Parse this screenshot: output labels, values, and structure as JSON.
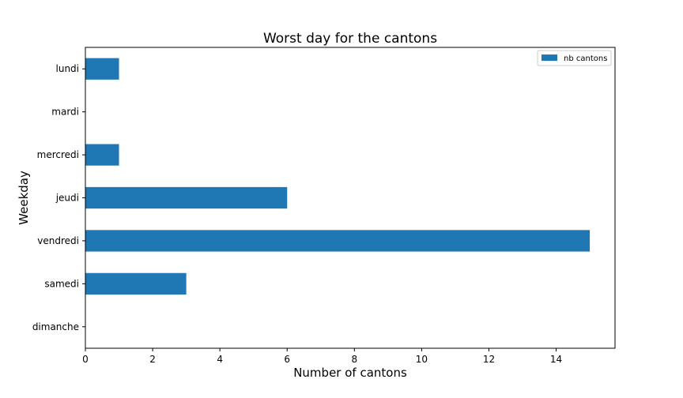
{
  "chart_data": {
    "type": "bar",
    "orientation": "horizontal",
    "title": "Worst day for the cantons",
    "xlabel": "Number of cantons",
    "ylabel": "Weekday",
    "categories": [
      "lundi",
      "mardi",
      "mercredi",
      "jeudi",
      "vendredi",
      "samedi",
      "dimanche"
    ],
    "series": [
      {
        "name": "nb cantons",
        "values": [
          1,
          0,
          1,
          6,
          15,
          3,
          0
        ],
        "color": "#1f77b4"
      }
    ],
    "xlim": [
      0,
      15.75
    ],
    "xticks": [
      "0",
      "2",
      "4",
      "6",
      "8",
      "10",
      "12",
      "14"
    ],
    "grid": false,
    "legend_position": "top-right"
  }
}
